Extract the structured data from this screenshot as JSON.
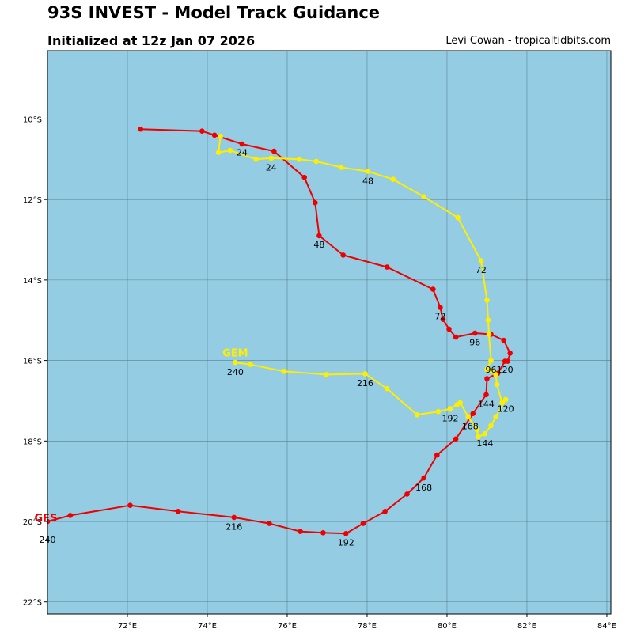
{
  "title": "93S INVEST - Model Track Guidance",
  "subtitle": "Initialized at 12z Jan 07 2026",
  "credit": "Levi Cowan - tropicaltidbits.com",
  "colors": {
    "ocean": "#94cde3",
    "grid": "#4a6f7a",
    "frame": "#000000"
  },
  "chart_data": {
    "type": "map",
    "lon_range": [
      70.0,
      84.1
    ],
    "lat_range": [
      -22.3,
      -8.3
    ],
    "x_ticks": [
      72,
      74,
      76,
      78,
      80,
      82,
      84
    ],
    "x_tick_labels": [
      "72°E",
      "74°E",
      "76°E",
      "78°E",
      "80°E",
      "82°E",
      "84°E"
    ],
    "y_ticks": [
      -10,
      -12,
      -14,
      -16,
      -18,
      -20,
      -22
    ],
    "y_tick_labels": [
      "10°S",
      "12°S",
      "14°S",
      "16°S",
      "18°S",
      "20°S",
      "22°S"
    ],
    "models": [
      {
        "name": "GFS",
        "color": "#ee0000",
        "label_color": "#ee0000",
        "points": [
          [
            72.33,
            -10.25
          ],
          [
            73.87,
            -10.3
          ],
          [
            74.18,
            -10.4
          ],
          [
            74.87,
            -10.62
          ],
          [
            75.67,
            -10.8
          ],
          [
            76.43,
            -11.45
          ],
          [
            76.7,
            -12.08
          ],
          [
            76.8,
            -12.9
          ],
          [
            77.4,
            -13.38
          ],
          [
            78.5,
            -13.68
          ],
          [
            79.65,
            -14.23
          ],
          [
            79.83,
            -14.68
          ],
          [
            79.9,
            -14.98
          ],
          [
            80.05,
            -15.22
          ],
          [
            80.22,
            -15.42
          ],
          [
            80.7,
            -15.32
          ],
          [
            81.1,
            -15.35
          ],
          [
            81.42,
            -15.5
          ],
          [
            81.58,
            -15.82
          ],
          [
            81.52,
            -16.02
          ],
          [
            81.45,
            -16.02
          ],
          [
            81.27,
            -16.32
          ],
          [
            81.0,
            -16.45
          ],
          [
            80.98,
            -16.85
          ],
          [
            80.65,
            -17.32
          ],
          [
            80.22,
            -17.95
          ],
          [
            79.75,
            -18.35
          ],
          [
            79.42,
            -18.92
          ],
          [
            79.0,
            -19.32
          ],
          [
            78.45,
            -19.75
          ],
          [
            77.9,
            -20.05
          ],
          [
            77.47,
            -20.3
          ],
          [
            76.9,
            -20.28
          ],
          [
            76.33,
            -20.25
          ],
          [
            75.55,
            -20.05
          ],
          [
            74.67,
            -19.9
          ],
          [
            73.27,
            -19.75
          ],
          [
            72.07,
            -19.6
          ],
          [
            70.57,
            -19.85
          ],
          [
            70.0,
            -20.0
          ]
        ],
        "hour_labels": [
          {
            "text": "24",
            "lon": 74.87,
            "lat": -10.83
          },
          {
            "text": "48",
            "lon": 76.8,
            "lat": -13.12
          },
          {
            "text": "72",
            "lon": 79.83,
            "lat": -14.9
          },
          {
            "text": "96",
            "lon": 80.7,
            "lat": -15.55
          },
          {
            "text": "120",
            "lon": 81.45,
            "lat": -16.22
          },
          {
            "text": "144",
            "lon": 80.98,
            "lat": -17.08
          },
          {
            "text": "168",
            "lon": 79.42,
            "lat": -19.15
          },
          {
            "text": "192",
            "lon": 77.47,
            "lat": -20.52
          },
          {
            "text": "216",
            "lon": 74.67,
            "lat": -20.13
          },
          {
            "text": "240",
            "lon": 70.0,
            "lat": -20.45
          }
        ],
        "name_label": {
          "lon": 69.96,
          "lat": -19.9
        }
      },
      {
        "name": "GEM",
        "color": "#ffee00",
        "label_color": "#ffee00",
        "points": [
          [
            74.33,
            -10.43
          ],
          [
            74.28,
            -10.83
          ],
          [
            74.57,
            -10.78
          ],
          [
            75.22,
            -11.0
          ],
          [
            75.6,
            -10.97
          ],
          [
            76.3,
            -11.0
          ],
          [
            76.73,
            -11.05
          ],
          [
            77.35,
            -11.2
          ],
          [
            78.02,
            -11.3
          ],
          [
            78.65,
            -11.5
          ],
          [
            79.42,
            -11.93
          ],
          [
            80.27,
            -12.45
          ],
          [
            80.85,
            -13.52
          ],
          [
            81.0,
            -14.5
          ],
          [
            81.03,
            -15.0
          ],
          [
            81.05,
            -15.35
          ],
          [
            81.1,
            -16.0
          ],
          [
            81.0,
            -16.22
          ],
          [
            81.12,
            -16.25
          ],
          [
            81.22,
            -16.35
          ],
          [
            81.25,
            -16.6
          ],
          [
            81.38,
            -17.05
          ],
          [
            81.47,
            -16.97
          ],
          [
            81.22,
            -17.4
          ],
          [
            81.1,
            -17.62
          ],
          [
            80.95,
            -17.82
          ],
          [
            80.78,
            -17.9
          ],
          [
            80.75,
            -17.72
          ],
          [
            80.53,
            -17.4
          ],
          [
            80.33,
            -17.05
          ],
          [
            80.25,
            -17.1
          ],
          [
            80.08,
            -17.2
          ],
          [
            79.78,
            -17.27
          ],
          [
            79.25,
            -17.35
          ],
          [
            78.5,
            -16.7
          ],
          [
            77.95,
            -16.33
          ],
          [
            76.98,
            -16.35
          ],
          [
            75.92,
            -16.27
          ],
          [
            75.08,
            -16.1
          ],
          [
            74.7,
            -16.05
          ]
        ],
        "hour_labels": [
          {
            "text": "24",
            "lon": 75.6,
            "lat": -11.2
          },
          {
            "text": "48",
            "lon": 78.02,
            "lat": -11.53
          },
          {
            "text": "72",
            "lon": 80.85,
            "lat": -13.75
          },
          {
            "text": "96",
            "lon": 81.1,
            "lat": -16.22
          },
          {
            "text": "120",
            "lon": 81.47,
            "lat": -17.2
          },
          {
            "text": "144",
            "lon": 80.95,
            "lat": -18.05
          },
          {
            "text": "168",
            "lon": 80.58,
            "lat": -17.63
          },
          {
            "text": "192",
            "lon": 80.08,
            "lat": -17.43
          },
          {
            "text": "216",
            "lon": 77.95,
            "lat": -16.56
          },
          {
            "text": "240",
            "lon": 74.7,
            "lat": -16.28
          }
        ],
        "name_label": {
          "lon": 74.7,
          "lat": -15.8
        }
      }
    ]
  }
}
